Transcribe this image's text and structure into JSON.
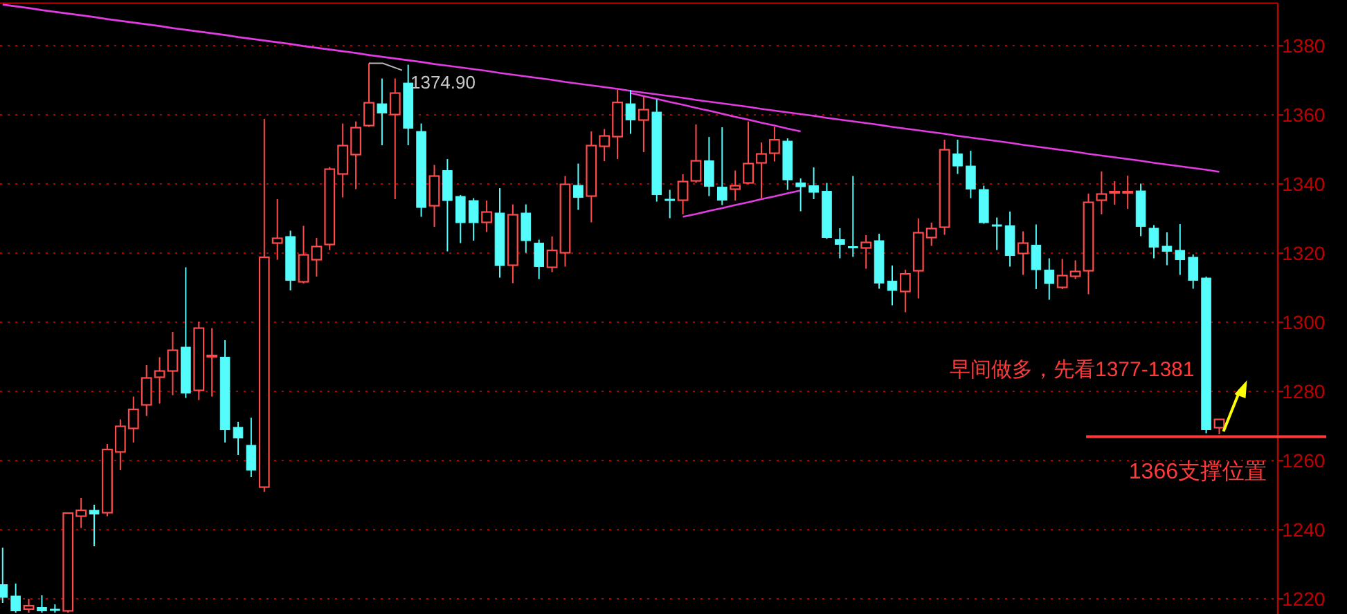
{
  "chart_data": {
    "type": "candlestick",
    "categories": [
      null,
      null,
      null,
      null,
      null,
      null,
      null,
      null,
      null,
      null,
      null,
      null,
      null,
      null,
      null,
      null,
      null,
      null,
      null,
      null,
      null,
      null,
      null,
      null,
      null,
      null,
      null,
      null,
      null,
      null,
      null,
      null,
      null,
      null,
      null,
      null,
      null,
      null,
      null,
      null,
      null,
      null,
      null,
      null,
      null,
      null,
      null,
      null,
      null,
      null,
      null,
      null,
      null,
      null,
      null,
      null,
      null,
      null,
      null,
      null,
      null,
      null,
      null,
      null,
      null,
      null,
      null,
      null,
      null,
      null,
      null,
      null,
      null,
      null,
      null,
      null,
      null,
      null,
      null,
      null,
      null,
      null,
      null,
      null,
      null,
      null,
      null,
      null,
      null,
      null,
      null,
      null,
      null,
      null
    ],
    "ohlc": [
      [
        1224.1,
        1234.8,
        1218.8,
        1220.4
      ],
      [
        1220.8,
        1224.4,
        1216,
        1216.5
      ],
      [
        1217,
        1220,
        1216,
        1218
      ],
      [
        1217.5,
        1221,
        1216,
        1216.5
      ],
      [
        1217,
        1218.4,
        1216,
        1216.6
      ],
      [
        1216.5,
        1244.8,
        1216,
        1244.8
      ],
      [
        1243.9,
        1249.2,
        1240.5,
        1245.6
      ],
      [
        1245.6,
        1247.2,
        1235.2,
        1244.5
      ],
      [
        1244.9,
        1264.8,
        1243.9,
        1263.2
      ],
      [
        1262.5,
        1271.9,
        1257.2,
        1269.9
      ],
      [
        1269.3,
        1278.5,
        1265.2,
        1274.8
      ],
      [
        1276.1,
        1287.6,
        1272.9,
        1283.9
      ],
      [
        1284.1,
        1289.9,
        1276.5,
        1285.9
      ],
      [
        1285.9,
        1297.2,
        1278.9,
        1291.9
      ],
      [
        1292.8,
        1315.9,
        1278.1,
        1279.5
      ],
      [
        1280.3,
        1300.1,
        1277.5,
        1298.3
      ],
      [
        1290.2,
        1298.3,
        1278.5,
        1290.4
      ],
      [
        1289.9,
        1294.8,
        1265.2,
        1268.9
      ],
      [
        1269.6,
        1271.2,
        1261.6,
        1266.5
      ],
      [
        1264.4,
        1272.4,
        1255.2,
        1257.2
      ],
      [
        1252.3,
        1358.8,
        1250.9,
        1318.8
      ],
      [
        1322.9,
        1335.6,
        1318.1,
        1324.3
      ],
      [
        1324.8,
        1326.5,
        1309.2,
        1312.1
      ],
      [
        1311.7,
        1327.9,
        1311.2,
        1319.5
      ],
      [
        1318.1,
        1324.4,
        1313.2,
        1321.9
      ],
      [
        1322.5,
        1344.9,
        1320.9,
        1344.3
      ],
      [
        1342.9,
        1357.5,
        1336.1,
        1351.1
      ],
      [
        1348.5,
        1358.1,
        1338.5,
        1356.3
      ],
      [
        1356.9,
        1374.9,
        1356.5,
        1363.5
      ],
      [
        1363.2,
        1370.5,
        1351.2,
        1360.5
      ],
      [
        1360.1,
        1370.5,
        1335.6,
        1366.3
      ],
      [
        1369.2,
        1374.5,
        1351.2,
        1356.1
      ],
      [
        1355.2,
        1357.5,
        1330.5,
        1333.2
      ],
      [
        1333.7,
        1345.5,
        1327.6,
        1342.3
      ],
      [
        1343.9,
        1347.2,
        1320.5,
        1335.2
      ],
      [
        1336.4,
        1336.8,
        1322.9,
        1328.8
      ],
      [
        1335.2,
        1335.9,
        1323.6,
        1328.8
      ],
      [
        1328.9,
        1335.2,
        1326.1,
        1331.9
      ],
      [
        1331.6,
        1338.8,
        1312.9,
        1316.4
      ],
      [
        1316.5,
        1334.1,
        1311.3,
        1331.1
      ],
      [
        1331.6,
        1334.1,
        1320.1,
        1323.6
      ],
      [
        1322.9,
        1323.9,
        1312.5,
        1316.1
      ],
      [
        1315.9,
        1324.8,
        1314.5,
        1320.8
      ],
      [
        1320.1,
        1342.3,
        1316.1,
        1339.9
      ],
      [
        1339.6,
        1345.9,
        1332.5,
        1336.1
      ],
      [
        1336.5,
        1355.2,
        1328.9,
        1351.1
      ],
      [
        1350.9,
        1355.9,
        1346.6,
        1353.9
      ],
      [
        1353.7,
        1367.2,
        1347.2,
        1363.6
      ],
      [
        1363.2,
        1367.2,
        1354.5,
        1358.5
      ],
      [
        1358.5,
        1365.2,
        1349.2,
        1361.5
      ],
      [
        1360.8,
        1364.5,
        1334.9,
        1336.9
      ],
      [
        1335.6,
        1338.3,
        1330.1,
        1335.4
      ],
      [
        1335.3,
        1342.8,
        1331.2,
        1340.7
      ],
      [
        1340.9,
        1357.2,
        1340.3,
        1346.7
      ],
      [
        1346.7,
        1353.6,
        1336.5,
        1339.3
      ],
      [
        1339.1,
        1356.4,
        1333.9,
        1335.3
      ],
      [
        1338.5,
        1343.9,
        1335.2,
        1339.5
      ],
      [
        1340.3,
        1358.1,
        1339.9,
        1345.9
      ],
      [
        1346.1,
        1352,
        1335.9,
        1348.7
      ],
      [
        1348.9,
        1356.5,
        1346.5,
        1352.8
      ],
      [
        1352.4,
        1353.2,
        1338.3,
        1341.2
      ],
      [
        1340.3,
        1341.6,
        1332.1,
        1339.2
      ],
      [
        1339.5,
        1344.8,
        1335.6,
        1337.6
      ],
      [
        1337.9,
        1340.3,
        1324.1,
        1324.5
      ],
      [
        1323.9,
        1327.2,
        1318.5,
        1322.5
      ],
      [
        1321.9,
        1342.3,
        1318.9,
        1321.7
      ],
      [
        1321.5,
        1325.2,
        1315.5,
        1323.1
      ],
      [
        1323.6,
        1325.6,
        1309.7,
        1311.3
      ],
      [
        1311.9,
        1316.4,
        1304.9,
        1309.2
      ],
      [
        1308.9,
        1315.2,
        1302.9,
        1314
      ],
      [
        1314.9,
        1330,
        1306.9,
        1325.9
      ],
      [
        1324.5,
        1328.8,
        1322.1,
        1327.1
      ],
      [
        1327.5,
        1352.8,
        1325.3,
        1349.9
      ],
      [
        1348.7,
        1352.8,
        1342.9,
        1345.2
      ],
      [
        1345.2,
        1349.6,
        1335.9,
        1338.5
      ],
      [
        1338.4,
        1339.5,
        1328.5,
        1328.8
      ],
      [
        1328.2,
        1330.3,
        1320.9,
        1327.9
      ],
      [
        1327.9,
        1332,
        1316.1,
        1319.3
      ],
      [
        1319.9,
        1326.3,
        1313.7,
        1322.9
      ],
      [
        1322.3,
        1328.3,
        1309.6,
        1315.2
      ],
      [
        1315.1,
        1318.5,
        1306.5,
        1311.2
      ],
      [
        1310.1,
        1318.3,
        1309.6,
        1313.5
      ],
      [
        1313.3,
        1317.9,
        1312.5,
        1314.7
      ],
      [
        1314.9,
        1337.2,
        1308.1,
        1334.7
      ],
      [
        1335.3,
        1343.6,
        1331.2,
        1337.1
      ],
      [
        1337.6,
        1340.8,
        1334,
        1337.8
      ],
      [
        1337.6,
        1342.4,
        1332.8,
        1337.8
      ],
      [
        1338,
        1340.1,
        1324.9,
        1327.7
      ],
      [
        1327.2,
        1328.1,
        1318.5,
        1321.7
      ],
      [
        1322,
        1326,
        1316.5,
        1320.5
      ],
      [
        1320.8,
        1328.4,
        1313.7,
        1318.1
      ],
      [
        1318.8,
        1319.6,
        1309.7,
        1312.1
      ],
      [
        1312.8,
        1313.2,
        1267.9,
        1268.9
      ],
      [
        1269.5,
        1271.9,
        1267.6,
        1271.9
      ]
    ],
    "colors": [
      "#54fcfc",
      "#54fcfc",
      "#ff4b4b",
      "#54fcfc",
      "#54fcfc",
      "#ff4b4b",
      "#ff4b4b",
      "#54fcfc",
      "#ff4b4b",
      "#ff4b4b",
      "#ff4b4b",
      "#ff4b4b",
      "#ff4b4b",
      "#ff4b4b",
      "#54fcfc",
      "#ff4b4b",
      "#ff4b4b",
      "#54fcfc",
      "#54fcfc",
      "#54fcfc",
      "#ff4b4b",
      "#ff4b4b",
      "#54fcfc",
      "#ff4b4b",
      "#ff4b4b",
      "#ff4b4b",
      "#ff4b4b",
      "#ff4b4b",
      "#ff4b4b",
      "#54fcfc",
      "#ff4b4b",
      "#54fcfc",
      "#54fcfc",
      "#ff4b4b",
      "#54fcfc",
      "#54fcfc",
      "#54fcfc",
      "#ff4b4b",
      "#54fcfc",
      "#ff4b4b",
      "#54fcfc",
      "#54fcfc",
      "#ff4b4b",
      "#ff4b4b",
      "#54fcfc",
      "#ff4b4b",
      "#ff4b4b",
      "#ff4b4b",
      "#54fcfc",
      "#ff4b4b",
      "#54fcfc",
      "#54fcfc",
      "#ff4b4b",
      "#ff4b4b",
      "#54fcfc",
      "#54fcfc",
      "#ff4b4b",
      "#ff4b4b",
      "#ff4b4b",
      "#ff4b4b",
      "#54fcfc",
      "#54fcfc",
      "#54fcfc",
      "#54fcfc",
      "#54fcfc",
      "#54fcfc",
      "#ff4b4b",
      "#54fcfc",
      "#54fcfc",
      "#ff4b4b",
      "#ff4b4b",
      "#ff4b4b",
      "#ff4b4b",
      "#54fcfc",
      "#54fcfc",
      "#54fcfc",
      "#54fcfc",
      "#54fcfc",
      "#ff4b4b",
      "#54fcfc",
      "#54fcfc",
      "#ff4b4b",
      "#ff4b4b",
      "#ff4b4b",
      "#ff4b4b",
      "#ff4b4b",
      "#ff4b4b",
      "#54fcfc",
      "#54fcfc",
      "#54fcfc",
      "#54fcfc",
      "#54fcfc",
      "#54fcfc",
      "#ff4b4b"
    ],
    "series": [
      {
        "type": "line",
        "color": "#e43ce4",
        "values": [
          1391.9,
          1391.4,
          1390.9,
          1390.3,
          1389.8,
          1389.3,
          1388.8,
          1388.3,
          1387.7,
          1387.2,
          1386.7,
          1386.2,
          1385.7,
          1385.1,
          1384.6,
          1384.1,
          1383.6,
          1383.1,
          1382.5,
          1382.0,
          1381.5,
          1381.0,
          1380.5,
          1379.9,
          1379.4,
          1378.9,
          1378.4,
          1377.9,
          1377.3,
          1376.8,
          1376.3,
          1375.8,
          1375.3,
          1374.7,
          1374.2,
          1373.7,
          1373.2,
          1372.7,
          1372.1,
          1371.6,
          1371.1,
          1370.6,
          1370.1,
          1369.5,
          1369.0,
          1368.5,
          1368.0,
          1367.5,
          1366.9,
          1366.4,
          1365.9,
          1365.4,
          1364.9,
          1364.3,
          1363.8,
          1363.3,
          1362.8,
          1362.3,
          1361.7,
          1361.2,
          1360.7,
          1360.2,
          1359.7,
          1359.1,
          1358.6,
          1358.1,
          1357.6,
          1357.1,
          1356.5,
          1356.0,
          1355.5,
          1355.0,
          1354.5,
          1353.9,
          1353.4,
          1352.9,
          1352.4,
          1351.9,
          1351.3,
          1350.8,
          1350.3,
          1349.8,
          1349.3,
          1348.7,
          1348.2,
          1347.7,
          1347.2,
          1346.7,
          1346.1,
          1345.6,
          1345.1,
          1344.6,
          1344.1,
          1343.5
        ]
      },
      {
        "type": "line",
        "color": "#e43ce4",
        "values": [
          null,
          null,
          null,
          null,
          null,
          null,
          null,
          null,
          null,
          null,
          null,
          null,
          null,
          null,
          null,
          null,
          null,
          null,
          null,
          null,
          null,
          null,
          null,
          null,
          null,
          null,
          null,
          null,
          null,
          null,
          null,
          null,
          null,
          null,
          null,
          null,
          null,
          null,
          null,
          null,
          null,
          null,
          null,
          null,
          null,
          null,
          null,
          null,
          1366.3,
          1365.4,
          1364.6,
          1363.7,
          1362.9,
          1362.0,
          1361.2,
          1360.3,
          1359.4,
          1358.6,
          1357.7,
          1356.9,
          1356.0,
          1355.2,
          null,
          null,
          null,
          null,
          null,
          null,
          null,
          null,
          null,
          null,
          null,
          null,
          null,
          null,
          null,
          null,
          null,
          null,
          null,
          null,
          null,
          null,
          null,
          null,
          null,
          null,
          null,
          null,
          null,
          null,
          null,
          null
        ]
      },
      {
        "type": "line",
        "color": "#e43ce4",
        "values": [
          null,
          null,
          null,
          null,
          null,
          null,
          null,
          null,
          null,
          null,
          null,
          null,
          null,
          null,
          null,
          null,
          null,
          null,
          null,
          null,
          null,
          null,
          null,
          null,
          null,
          null,
          null,
          null,
          null,
          null,
          null,
          null,
          null,
          null,
          null,
          null,
          null,
          null,
          null,
          null,
          null,
          null,
          null,
          null,
          null,
          null,
          null,
          null,
          null,
          null,
          null,
          null,
          1330.5,
          1331.3,
          1332.2,
          1333.0,
          1333.9,
          1334.7,
          1335.6,
          1336.4,
          1337.3,
          1338.1,
          null,
          null,
          null,
          null,
          null,
          null,
          null,
          null,
          null,
          null,
          null,
          null,
          null,
          null,
          null,
          null,
          null,
          null,
          null,
          null,
          null,
          null,
          null,
          null,
          null,
          null,
          null,
          null,
          null,
          null,
          null,
          null
        ]
      }
    ],
    "ylim": [
      1215.6,
      1392.3
    ],
    "yticks": [
      1220,
      1240,
      1260,
      1280,
      1300,
      1320,
      1340,
      1360,
      1380
    ],
    "grid": "y",
    "tick_labels": "y",
    "ref_lines": [
      {
        "axis": "y",
        "value": 1266.9,
        "label": "1366支撑位置",
        "color": "#ff3a3a"
      }
    ],
    "annotations": [
      {
        "text": "1374.90",
        "y": 1374.9
      },
      "早间做多，先看1377-1381"
    ]
  }
}
